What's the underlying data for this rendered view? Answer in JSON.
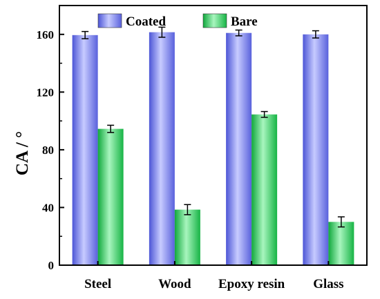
{
  "chart_data": {
    "type": "bar",
    "categories": [
      "Steel",
      "Wood",
      "Epoxy resin",
      "Glass"
    ],
    "series": [
      {
        "name": "Coated",
        "values": [
          159.5,
          161.5,
          161,
          160
        ],
        "errors": [
          2.5,
          3.5,
          2,
          2.5
        ],
        "color": "#7f86ee"
      },
      {
        "name": "Bare",
        "values": [
          94.5,
          38.5,
          104.5,
          30
        ],
        "errors": [
          2.5,
          3.5,
          2,
          3.5
        ],
        "color": "#2fc95c"
      }
    ],
    "ylabel": "CA / °",
    "ylim": [
      0,
      180
    ],
    "yticks": [
      0,
      40,
      80,
      120,
      160
    ],
    "legend_position": "top"
  }
}
